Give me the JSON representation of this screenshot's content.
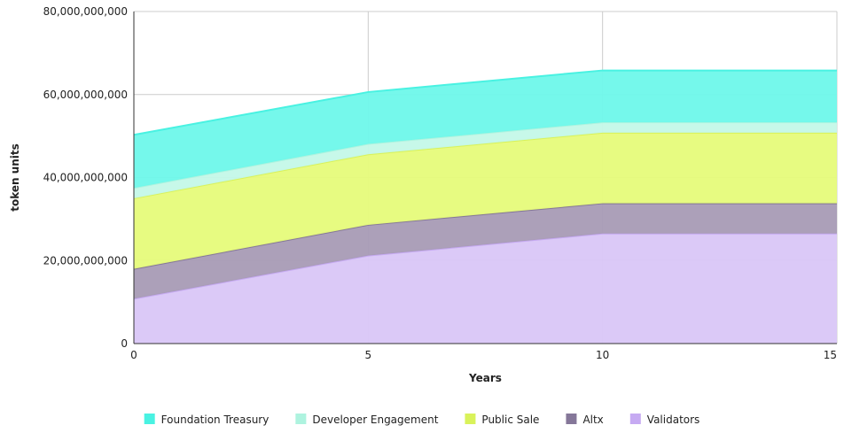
{
  "chart_data": {
    "type": "area",
    "stacked": true,
    "title": "",
    "xlabel": "Years",
    "ylabel": "token units",
    "x": [
      0,
      5,
      10,
      15
    ],
    "xlim": [
      0,
      15
    ],
    "ylim": [
      0,
      80000000000
    ],
    "xticks": [
      0,
      5,
      10,
      15
    ],
    "yticks": [
      0,
      20000000000,
      40000000000,
      60000000000,
      80000000000
    ],
    "grid": true,
    "legend_position": "bottom",
    "series": [
      {
        "name": "Validators",
        "color": "#d9c6f7",
        "line_color": "#c6aaf2",
        "values": [
          10800000000,
          21200000000,
          26500000000,
          26500000000
        ]
      },
      {
        "name": "Altx",
        "color": "#a89bb5",
        "line_color": "#857799",
        "values": [
          7200000000,
          7400000000,
          7300000000,
          7300000000
        ]
      },
      {
        "name": "Public Sale",
        "color": "#e6fb7a",
        "line_color": "#d9f25a",
        "values": [
          17000000000,
          17000000000,
          17000000000,
          17000000000
        ]
      },
      {
        "name": "Developer Engagement",
        "color": "#c4f8e8",
        "line_color": "#aef3df",
        "values": [
          2500000000,
          2500000000,
          2500000000,
          2500000000
        ]
      },
      {
        "name": "Foundation Treasury",
        "color": "#6ef8ea",
        "line_color": "#49f2e2",
        "values": [
          12800000000,
          12500000000,
          12500000000,
          12500000000
        ]
      }
    ],
    "legend_order": [
      "Foundation Treasury",
      "Developer Engagement",
      "Public Sale",
      "Altx",
      "Validators"
    ]
  }
}
